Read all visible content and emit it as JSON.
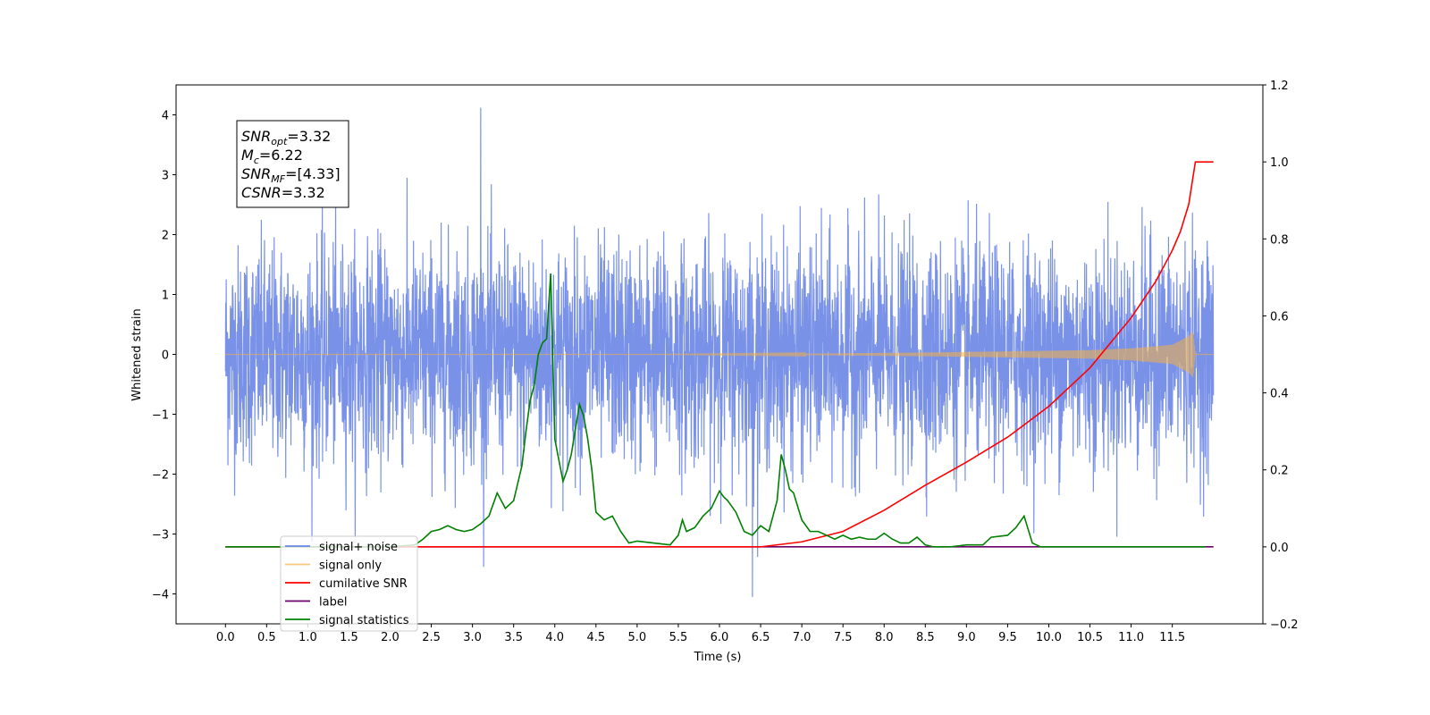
{
  "chart_data": {
    "type": "line",
    "xlabel": "Time (s)",
    "ylabel": "Whitened strain",
    "ylabel_right": "",
    "xlim": [
      -0.6,
      12.6
    ],
    "ylim": [
      -4.5,
      4.5
    ],
    "ylim_right": [
      -0.2,
      1.2
    ],
    "xticks": [
      "0.0",
      "0.5",
      "1.0",
      "1.5",
      "2.0",
      "2.5",
      "3.0",
      "3.5",
      "4.0",
      "4.5",
      "5.0",
      "5.5",
      "6.0",
      "6.5",
      "7.0",
      "7.5",
      "8.0",
      "8.5",
      "9.0",
      "9.5",
      "10.0",
      "10.5",
      "11.0",
      "11.5"
    ],
    "yticks_left": [
      "4",
      "3",
      "2",
      "1",
      "0",
      "−1",
      "−2",
      "−3",
      "−4"
    ],
    "yticks_right": [
      "1.2",
      "1.0",
      "0.8",
      "0.6",
      "0.4",
      "0.2",
      "0.0",
      "−0.2"
    ],
    "grid": false,
    "legend_position": "lower-left",
    "stats_box": {
      "lines": [
        {
          "sym": "SNR",
          "sub": "opt",
          "val": "=3.32"
        },
        {
          "sym": "M",
          "sub": "c",
          "val": "=6.22"
        },
        {
          "sym": "SNR",
          "sub": "MF",
          "val": "=[4.33]"
        },
        {
          "sym": "CSNR",
          "sub": "",
          "val": "=3.32"
        }
      ]
    },
    "series": [
      {
        "name": "signal+ noise",
        "axis": "left",
        "color": "#6a86e6",
        "description_values": {
          "x_range": [
            0.0,
            12.0
          ],
          "noise_std": 0.9,
          "max": 4.12,
          "max_at": 3.1,
          "min": -4.05,
          "min_at": 6.4
        }
      },
      {
        "name": "signal only",
        "axis": "left",
        "color": "#f5b041",
        "envelope": {
          "x": [
            0.0,
            5.0,
            7.0,
            8.5,
            9.5,
            10.5,
            11.0,
            11.5,
            11.7,
            11.75,
            11.78,
            12.0
          ],
          "amp": [
            0.0,
            0.0,
            0.01,
            0.03,
            0.05,
            0.07,
            0.1,
            0.16,
            0.3,
            0.38,
            0.0,
            0.0
          ]
        }
      },
      {
        "name": "cumilative SNR",
        "axis": "right",
        "color": "#ff0000",
        "x": [
          0.0,
          6.5,
          7.0,
          7.5,
          8.0,
          8.5,
          9.0,
          9.5,
          10.0,
          10.5,
          11.0,
          11.3,
          11.5,
          11.6,
          11.7,
          11.78,
          11.85,
          12.0
        ],
        "y": [
          0.0,
          0.0,
          0.013,
          0.04,
          0.095,
          0.16,
          0.22,
          0.285,
          0.365,
          0.465,
          0.595,
          0.69,
          0.77,
          0.82,
          0.89,
          1.0,
          1.0,
          1.0
        ]
      },
      {
        "name": "label",
        "axis": "right",
        "color": "#6b006b",
        "x": [
          0.0,
          12.0
        ],
        "y": [
          0.0,
          0.0
        ]
      },
      {
        "name": "signal statistics",
        "axis": "right",
        "color": "#008000",
        "x": [
          0.0,
          0.5,
          1.0,
          1.5,
          2.0,
          2.3,
          2.4,
          2.5,
          2.6,
          2.7,
          2.8,
          2.9,
          3.0,
          3.1,
          3.2,
          3.3,
          3.4,
          3.5,
          3.6,
          3.65,
          3.7,
          3.75,
          3.8,
          3.85,
          3.9,
          3.95,
          4.0,
          4.1,
          4.15,
          4.2,
          4.3,
          4.35,
          4.4,
          4.45,
          4.5,
          4.6,
          4.7,
          4.8,
          4.9,
          5.0,
          5.2,
          5.4,
          5.5,
          5.55,
          5.6,
          5.7,
          5.8,
          5.9,
          6.0,
          6.05,
          6.1,
          6.2,
          6.3,
          6.4,
          6.5,
          6.6,
          6.7,
          6.75,
          6.8,
          6.85,
          6.9,
          7.0,
          7.1,
          7.2,
          7.3,
          7.4,
          7.5,
          7.6,
          7.7,
          7.8,
          7.9,
          8.0,
          8.1,
          8.2,
          8.3,
          8.4,
          8.5,
          8.6,
          8.8,
          9.0,
          9.2,
          9.3,
          9.5,
          9.6,
          9.7,
          9.8,
          9.9,
          10.0,
          10.5,
          11.0,
          11.5,
          11.9
        ],
        "y": [
          0.0,
          0.0,
          0.0,
          0.0,
          0.0,
          0.005,
          0.02,
          0.04,
          0.045,
          0.055,
          0.045,
          0.04,
          0.045,
          0.06,
          0.08,
          0.14,
          0.1,
          0.12,
          0.21,
          0.3,
          0.38,
          0.42,
          0.5,
          0.53,
          0.54,
          0.71,
          0.28,
          0.17,
          0.2,
          0.24,
          0.37,
          0.34,
          0.28,
          0.2,
          0.09,
          0.07,
          0.08,
          0.04,
          0.01,
          0.015,
          0.01,
          0.005,
          0.03,
          0.07,
          0.04,
          0.05,
          0.08,
          0.1,
          0.145,
          0.13,
          0.12,
          0.09,
          0.04,
          0.03,
          0.055,
          0.04,
          0.12,
          0.24,
          0.2,
          0.15,
          0.14,
          0.07,
          0.04,
          0.04,
          0.03,
          0.02,
          0.03,
          0.02,
          0.025,
          0.02,
          0.02,
          0.035,
          0.02,
          0.01,
          0.01,
          0.025,
          0.005,
          0.0,
          0.0,
          0.005,
          0.005,
          0.025,
          0.03,
          0.05,
          0.08,
          0.01,
          0.0,
          0.0,
          0.0,
          0.0,
          0.0,
          0.0
        ]
      }
    ]
  }
}
